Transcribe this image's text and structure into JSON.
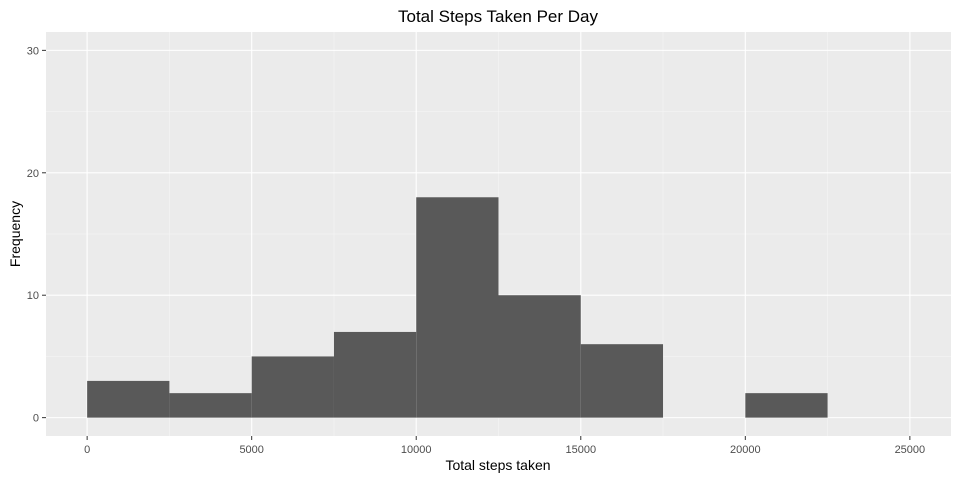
{
  "chart_data": {
    "type": "bar",
    "title": "Total Steps Taken Per Day",
    "xlabel": "Total steps taken",
    "ylabel": "Frequency",
    "bin_width": 2500,
    "bins": [
      {
        "x0": 0,
        "x1": 2500,
        "count": 3
      },
      {
        "x0": 2500,
        "x1": 5000,
        "count": 2
      },
      {
        "x0": 5000,
        "x1": 7500,
        "count": 5
      },
      {
        "x0": 7500,
        "x1": 10000,
        "count": 7
      },
      {
        "x0": 10000,
        "x1": 12500,
        "count": 18
      },
      {
        "x0": 12500,
        "x1": 15000,
        "count": 10
      },
      {
        "x0": 15000,
        "x1": 17500,
        "count": 6
      },
      {
        "x0": 17500,
        "x1": 20000,
        "count": 0
      },
      {
        "x0": 20000,
        "x1": 22500,
        "count": 2
      }
    ],
    "xlim": [
      -1250,
      26250
    ],
    "ylim": [
      -1.5,
      31.5
    ],
    "x_ticks": [
      0,
      5000,
      10000,
      15000,
      20000,
      25000
    ],
    "x_tick_labels": [
      "0",
      "5000",
      "10000",
      "15000",
      "20000",
      "25000"
    ],
    "y_ticks": [
      0,
      10,
      20,
      30
    ],
    "y_tick_labels": [
      "0",
      "10",
      "20",
      "30"
    ],
    "grid": true,
    "colors": {
      "panel_background": "#ebebeb",
      "grid_major": "#ffffff",
      "grid_minor": "#f5f5f5",
      "bar_fill": "#595959",
      "tick_color": "#333333"
    }
  }
}
